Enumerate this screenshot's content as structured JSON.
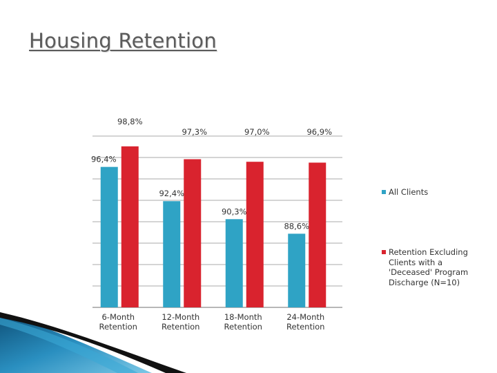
{
  "slide": {
    "title": "Housing Retention"
  },
  "colors": {
    "series_1": "#2fa3c5",
    "series_2": "#d9232e",
    "grid": "#8c8c8c"
  },
  "chart_data": {
    "type": "bar",
    "title": "",
    "xlabel": "",
    "ylabel": "",
    "categories": [
      "6-Month Retention",
      "12-Month Retention",
      "18-Month Retention",
      "24-Month Retention"
    ],
    "category_lines": [
      [
        "6-Month",
        "Retention"
      ],
      [
        "12-Month",
        "Retention"
      ],
      [
        "18-Month",
        "Retention"
      ],
      [
        "24-Month",
        "Retention"
      ]
    ],
    "series": [
      {
        "name": "All Clients",
        "values": [
          96.4,
          92.4,
          90.3,
          88.6
        ],
        "labels": [
          "96,4%",
          "92,4%",
          "90,3%",
          "88,6%"
        ]
      },
      {
        "name": "Retention Excluding Clients with a 'Deceased' Program Discharge (N=10)",
        "values": [
          98.8,
          97.3,
          97.0,
          96.9
        ],
        "labels": [
          "98,8%",
          "97,3%",
          "97,0%",
          "96,9%"
        ]
      }
    ],
    "ylim": [
      80,
      100
    ],
    "grid": true,
    "legend_position": "right"
  }
}
